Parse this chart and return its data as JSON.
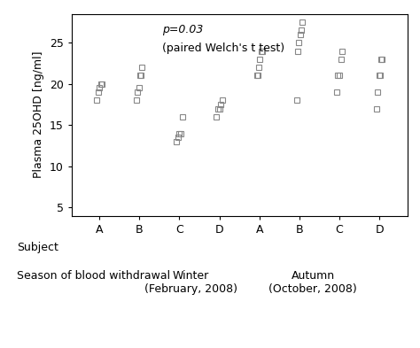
{
  "ylabel": "Plasma 25OHD [ng/ml]",
  "xlabel_subject": "Subject",
  "xlabel_season": "Season of blood withdrawal",
  "annotation_line1": "p=0.03",
  "annotation_line2": "(paired Welch's t test)",
  "ylim": [
    4,
    28.5
  ],
  "yticks": [
    5,
    10,
    15,
    20,
    25
  ],
  "x_positions": [
    1,
    2,
    3,
    4,
    5,
    6,
    7,
    8
  ],
  "data": {
    "Winter_A": [
      18.0,
      19.0,
      19.5,
      20.0,
      20.0
    ],
    "Winter_B": [
      18.0,
      19.0,
      19.5,
      21.0,
      21.0,
      22.0
    ],
    "Winter_C": [
      13.0,
      13.5,
      14.0,
      14.0,
      16.0
    ],
    "Winter_D": [
      16.0,
      17.0,
      17.0,
      17.5,
      18.0
    ],
    "Autumn_A": [
      21.0,
      21.0,
      22.0,
      23.0,
      24.0,
      24.0
    ],
    "Autumn_B": [
      18.0,
      24.0,
      25.0,
      26.0,
      26.5,
      27.5
    ],
    "Autumn_C": [
      19.0,
      21.0,
      21.0,
      23.0,
      24.0
    ],
    "Autumn_D": [
      17.0,
      19.0,
      21.0,
      21.0,
      23.0,
      23.0
    ]
  },
  "subject_labels": [
    "A",
    "B",
    "C",
    "D",
    "A",
    "B",
    "C",
    "D"
  ],
  "marker_color": "#888888",
  "background_color": "#ffffff",
  "font_size": 9,
  "winter_label": "Winter\n(February, 2008)",
  "autumn_label": "Autumn\n(October, 2008)"
}
